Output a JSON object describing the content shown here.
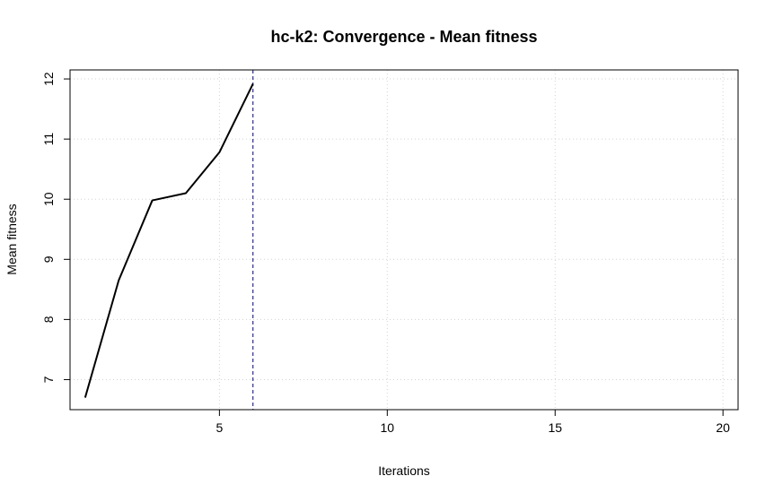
{
  "chart_data": {
    "type": "line",
    "title": "hc-k2: Convergence - Mean fitness",
    "xlabel": "Iterations",
    "ylabel": "Mean fitness",
    "xlim": [
      0.55,
      20.45
    ],
    "ylim": [
      6.5,
      12.15
    ],
    "x_ticks": [
      5,
      10,
      15,
      20
    ],
    "y_ticks": [
      7,
      8,
      9,
      10,
      11,
      12
    ],
    "grid": true,
    "series": [
      {
        "x": [
          1,
          2,
          3,
          4,
          5,
          6
        ],
        "values": [
          6.7,
          8.65,
          9.98,
          10.1,
          10.78,
          11.92
        ],
        "color": "#000000"
      }
    ],
    "reference_line": {
      "axis": "x",
      "value": 6,
      "color": "#000080",
      "style": "dashed"
    }
  }
}
